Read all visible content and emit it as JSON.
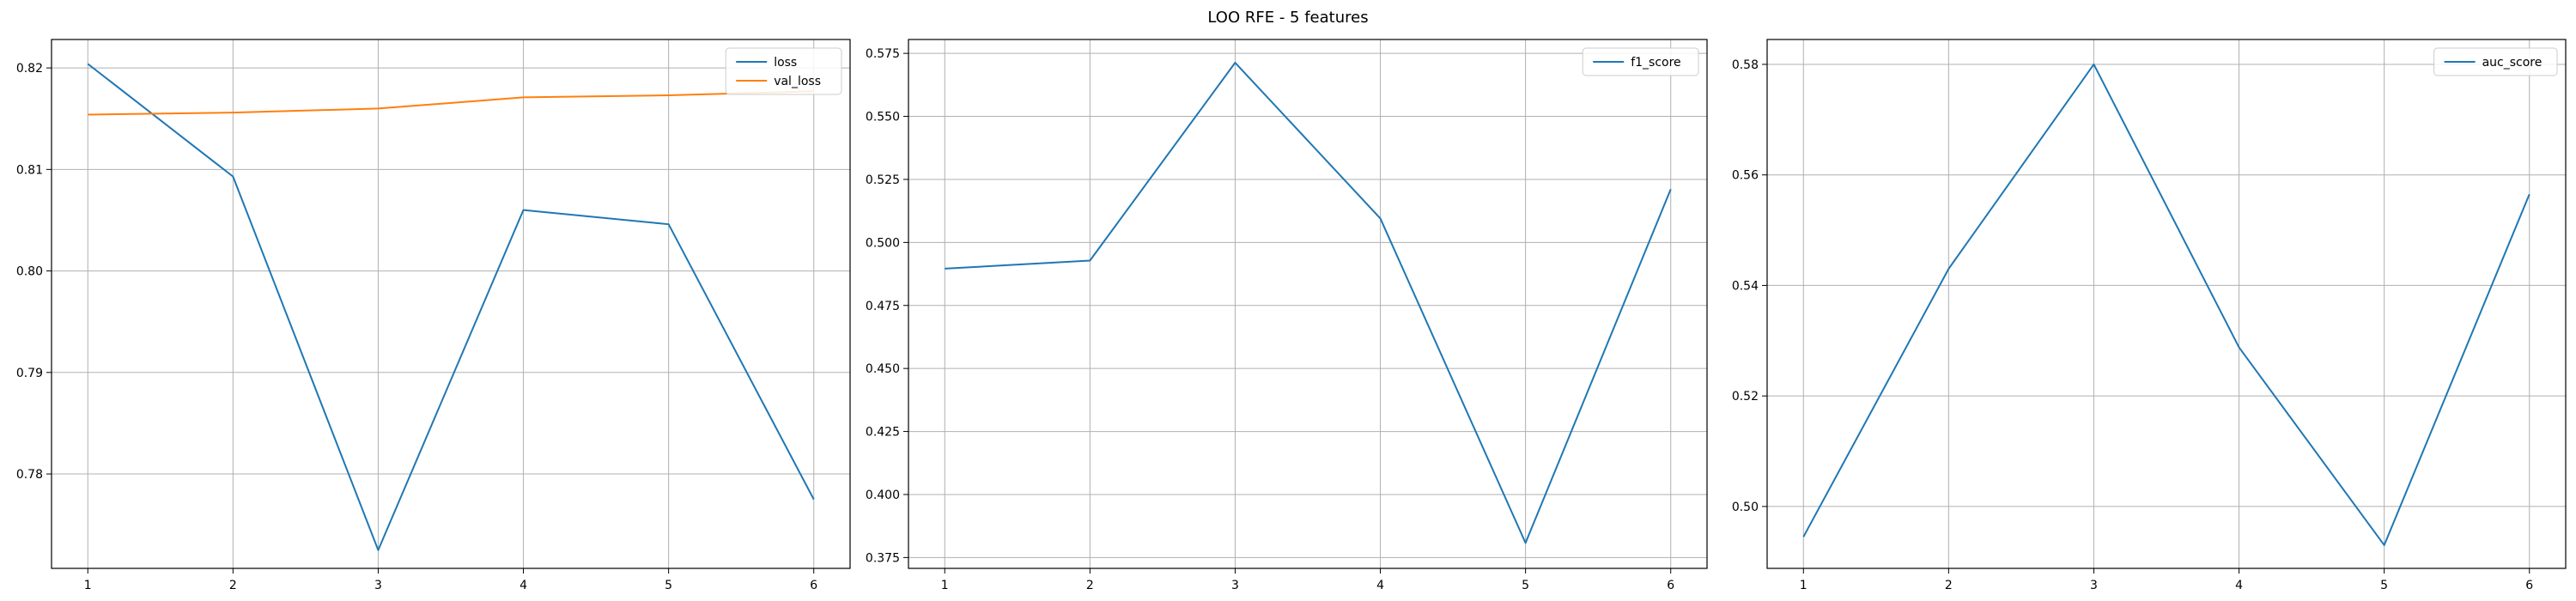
{
  "figure": {
    "title": "LOO RFE - 5 features"
  },
  "chart_data": [
    {
      "type": "line",
      "title": "",
      "xlabel": "",
      "ylabel": "",
      "x": [
        1,
        2,
        3,
        4,
        5,
        6
      ],
      "xticks": [
        1,
        2,
        3,
        4,
        5,
        6
      ],
      "yticks": [
        0.78,
        0.79,
        0.8,
        0.81,
        0.82
      ],
      "ytick_labels": [
        "0.78",
        "0.79",
        "0.80",
        "0.81",
        "0.82"
      ],
      "xlim": [
        0.75,
        6.25
      ],
      "ylim": [
        0.7707,
        0.8228
      ],
      "grid": true,
      "legend": "upper right",
      "series": [
        {
          "name": "loss",
          "color": "#1f77b4",
          "values": [
            0.8204,
            0.8093,
            0.7725,
            0.806,
            0.8046,
            0.7775
          ]
        },
        {
          "name": "val_loss",
          "color": "#ff7f0e",
          "values": [
            0.8154,
            0.8156,
            0.816,
            0.8171,
            0.8173,
            0.8177
          ]
        }
      ]
    },
    {
      "type": "line",
      "title": "",
      "xlabel": "",
      "ylabel": "",
      "x": [
        1,
        2,
        3,
        4,
        5,
        6
      ],
      "xticks": [
        1,
        2,
        3,
        4,
        5,
        6
      ],
      "yticks": [
        0.375,
        0.4,
        0.425,
        0.45,
        0.475,
        0.5,
        0.525,
        0.55,
        0.575
      ],
      "ytick_labels": [
        "0.375",
        "0.400",
        "0.425",
        "0.450",
        "0.475",
        "0.500",
        "0.525",
        "0.550",
        "0.575"
      ],
      "xlim": [
        0.75,
        6.25
      ],
      "ylim": [
        0.3707,
        0.5805
      ],
      "grid": true,
      "legend": "upper right",
      "series": [
        {
          "name": "f1_score",
          "color": "#1f77b4",
          "values": [
            0.4896,
            0.4928,
            0.5713,
            0.5095,
            0.3808,
            0.5211
          ]
        }
      ]
    },
    {
      "type": "line",
      "title": "",
      "xlabel": "",
      "ylabel": "",
      "x": [
        1,
        2,
        3,
        4,
        5,
        6
      ],
      "xticks": [
        1,
        2,
        3,
        4,
        5,
        6
      ],
      "yticks": [
        0.5,
        0.52,
        0.54,
        0.56,
        0.58
      ],
      "ytick_labels": [
        "0.50",
        "0.52",
        "0.54",
        "0.56",
        "0.58"
      ],
      "xlim": [
        0.75,
        6.25
      ],
      "ylim": [
        0.4888,
        0.5845
      ],
      "grid": true,
      "legend": "upper right",
      "series": [
        {
          "name": "auc_score",
          "color": "#1f77b4",
          "values": [
            0.4945,
            0.543,
            0.58,
            0.5288,
            0.493,
            0.5565
          ]
        }
      ]
    }
  ]
}
